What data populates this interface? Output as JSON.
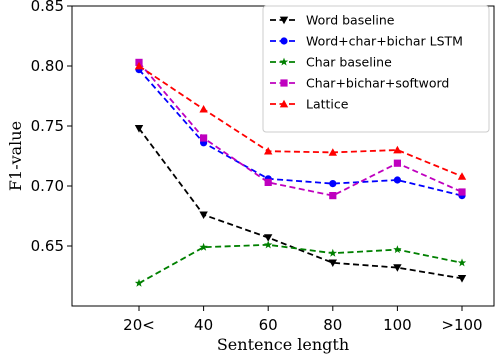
{
  "chart_data": {
    "type": "line",
    "xlabel": "Sentence length",
    "ylabel": "F1-value",
    "categories": [
      "20<",
      "40",
      "60",
      "80",
      "100",
      ">100"
    ],
    "ylim": [
      0.6,
      0.85
    ],
    "yticks": [
      "0.65",
      "0.70",
      "0.75",
      "0.80",
      "0.85"
    ],
    "grid": false,
    "legend_position": "top-right",
    "series": [
      {
        "name": "Word baseline",
        "color": "#000000",
        "marker": "triangle-down",
        "values": [
          0.748,
          0.676,
          0.657,
          0.636,
          0.632,
          0.623
        ]
      },
      {
        "name": "Word+char+bichar LSTM",
        "color": "#0000ff",
        "marker": "circle",
        "values": [
          0.797,
          0.736,
          0.706,
          0.702,
          0.705,
          0.692
        ]
      },
      {
        "name": "Char baseline",
        "color": "#008000",
        "marker": "star",
        "values": [
          0.619,
          0.649,
          0.651,
          0.644,
          0.647,
          0.636
        ]
      },
      {
        "name": "Char+bichar+softword",
        "color": "#bf00bf",
        "marker": "square",
        "values": [
          0.803,
          0.74,
          0.703,
          0.692,
          0.719,
          0.695
        ]
      },
      {
        "name": "Lattice",
        "color": "#ff0000",
        "marker": "triangle-up",
        "values": [
          0.8,
          0.764,
          0.729,
          0.728,
          0.73,
          0.708
        ]
      }
    ]
  }
}
